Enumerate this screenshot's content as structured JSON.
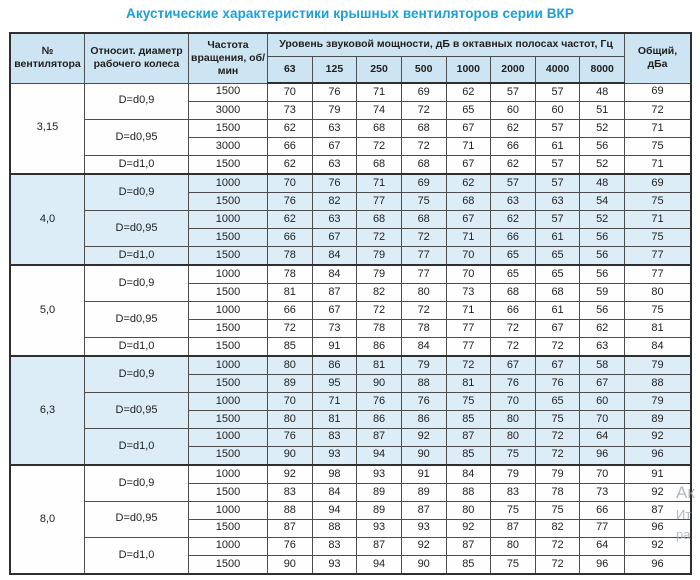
{
  "title": "Акустические характеристики крышных вентиляторов серии ВКР",
  "table": {
    "headers": {
      "fan_no": "№ вентилятора",
      "diameter": "Относит. диаметр рабочего колеса",
      "speed": "Частота вращения, об/мин",
      "spl_group": "Уровень звуковой мощности, дБ в октавных полосах частот, Гц",
      "freqs": [
        "63",
        "125",
        "250",
        "500",
        "1000",
        "2000",
        "4000",
        "8000"
      ],
      "total": "Общий, дБа"
    },
    "groups": [
      {
        "fan": "3,15",
        "shaded": false,
        "subgroups": [
          {
            "diameter": "D=d0,9",
            "rows": [
              {
                "speed": "1500",
                "values": [
                  70,
                  76,
                  71,
                  69,
                  62,
                  57,
                  57,
                  48
                ],
                "total": "69"
              },
              {
                "speed": "3000",
                "values": [
                  73,
                  79,
                  74,
                  72,
                  65,
                  60,
                  60,
                  51
                ],
                "total": "72"
              }
            ]
          },
          {
            "diameter": "D=d0,95",
            "rows": [
              {
                "speed": "1500",
                "values": [
                  62,
                  63,
                  68,
                  68,
                  67,
                  62,
                  57,
                  52
                ],
                "total": "71"
              },
              {
                "speed": "3000",
                "values": [
                  66,
                  67,
                  72,
                  72,
                  71,
                  66,
                  61,
                  56
                ],
                "total": "75"
              }
            ]
          },
          {
            "diameter": "D=d1,0",
            "rows": [
              {
                "speed": "1500",
                "values": [
                  62,
                  63,
                  68,
                  68,
                  67,
                  62,
                  57,
                  52
                ],
                "total": "71"
              }
            ]
          }
        ]
      },
      {
        "fan": "4,0",
        "shaded": true,
        "subgroups": [
          {
            "diameter": "D=d0,9",
            "rows": [
              {
                "speed": "1000",
                "values": [
                  70,
                  76,
                  71,
                  69,
                  62,
                  57,
                  57,
                  48
                ],
                "total": "69"
              },
              {
                "speed": "1500",
                "values": [
                  76,
                  82,
                  77,
                  75,
                  68,
                  63,
                  63,
                  54
                ],
                "total": "75"
              }
            ]
          },
          {
            "diameter": "D=d0,95",
            "rows": [
              {
                "speed": "1000",
                "values": [
                  62,
                  63,
                  68,
                  68,
                  67,
                  62,
                  57,
                  52
                ],
                "total": "71"
              },
              {
                "speed": "1500",
                "values": [
                  66,
                  67,
                  72,
                  72,
                  71,
                  66,
                  61,
                  56
                ],
                "total": "75"
              }
            ]
          },
          {
            "diameter": "D=d1,0",
            "rows": [
              {
                "speed": "1500",
                "values": [
                  78,
                  84,
                  79,
                  77,
                  70,
                  65,
                  65,
                  56
                ],
                "total": "77"
              }
            ]
          }
        ]
      },
      {
        "fan": "5,0",
        "shaded": false,
        "subgroups": [
          {
            "diameter": "D=d0,9",
            "rows": [
              {
                "speed": "1000",
                "values": [
                  78,
                  84,
                  79,
                  77,
                  70,
                  65,
                  65,
                  56
                ],
                "total": "77"
              },
              {
                "speed": "1500",
                "values": [
                  81,
                  87,
                  82,
                  80,
                  73,
                  68,
                  68,
                  59
                ],
                "total": "80"
              }
            ]
          },
          {
            "diameter": "D=d0,95",
            "rows": [
              {
                "speed": "1000",
                "values": [
                  66,
                  67,
                  72,
                  72,
                  71,
                  66,
                  61,
                  56
                ],
                "total": "75"
              },
              {
                "speed": "1500",
                "values": [
                  72,
                  73,
                  78,
                  78,
                  77,
                  72,
                  67,
                  62
                ],
                "total": "81"
              }
            ]
          },
          {
            "diameter": "D=d1,0",
            "rows": [
              {
                "speed": "1500",
                "values": [
                  85,
                  91,
                  86,
                  84,
                  77,
                  72,
                  72,
                  63
                ],
                "total": "84"
              }
            ]
          }
        ]
      },
      {
        "fan": "6,3",
        "shaded": true,
        "subgroups": [
          {
            "diameter": "D=d0,9",
            "rows": [
              {
                "speed": "1000",
                "values": [
                  80,
                  86,
                  81,
                  79,
                  72,
                  67,
                  67,
                  58
                ],
                "total": "79"
              },
              {
                "speed": "1500",
                "values": [
                  89,
                  95,
                  90,
                  88,
                  81,
                  76,
                  76,
                  67
                ],
                "total": "88"
              }
            ]
          },
          {
            "diameter": "D=d0,95",
            "rows": [
              {
                "speed": "1000",
                "values": [
                  70,
                  71,
                  76,
                  76,
                  75,
                  70,
                  65,
                  60
                ],
                "total": "79"
              },
              {
                "speed": "1500",
                "values": [
                  80,
                  81,
                  86,
                  86,
                  85,
                  80,
                  75,
                  70
                ],
                "total": "89"
              }
            ]
          },
          {
            "diameter": "D=d1,0",
            "rows": [
              {
                "speed": "1000",
                "values": [
                  76,
                  83,
                  87,
                  92,
                  87,
                  80,
                  72,
                  64
                ],
                "total": "92"
              },
              {
                "speed": "1500",
                "values": [
                  90,
                  93,
                  94,
                  90,
                  85,
                  75,
                  72,
                  96
                ],
                "total": "96"
              }
            ]
          }
        ]
      },
      {
        "fan": "8,0",
        "shaded": false,
        "subgroups": [
          {
            "diameter": "D=d0,9",
            "rows": [
              {
                "speed": "1000",
                "values": [
                  92,
                  98,
                  93,
                  91,
                  84,
                  79,
                  79,
                  70
                ],
                "total": "91"
              },
              {
                "speed": "1500",
                "values": [
                  83,
                  84,
                  89,
                  89,
                  88,
                  83,
                  78,
                  73
                ],
                "total": "92"
              }
            ]
          },
          {
            "diameter": "D=d0,95",
            "rows": [
              {
                "speed": "1000",
                "values": [
                  88,
                  94,
                  89,
                  87,
                  80,
                  75,
                  75,
                  66
                ],
                "total": "87"
              },
              {
                "speed": "1500",
                "values": [
                  87,
                  88,
                  93,
                  93,
                  92,
                  87,
                  82,
                  77
                ],
                "total": "96"
              }
            ]
          },
          {
            "diameter": "D=d1,0",
            "rows": [
              {
                "speed": "1000",
                "values": [
                  76,
                  83,
                  87,
                  92,
                  87,
                  80,
                  72,
                  64
                ],
                "total": "92"
              },
              {
                "speed": "1500",
                "values": [
                  90,
                  93,
                  94,
                  90,
                  85,
                  75,
                  72,
                  96
                ],
                "total": "96"
              }
            ]
          }
        ]
      }
    ]
  },
  "watermark": {
    "line1": "Ак",
    "line2": "Ит",
    "line3": "ра"
  },
  "colors": {
    "title": "#1b9fd9",
    "header_bg": "#cde4f2",
    "shaded_row_bg": "#dcedf8",
    "border": "#4d4d4d"
  }
}
